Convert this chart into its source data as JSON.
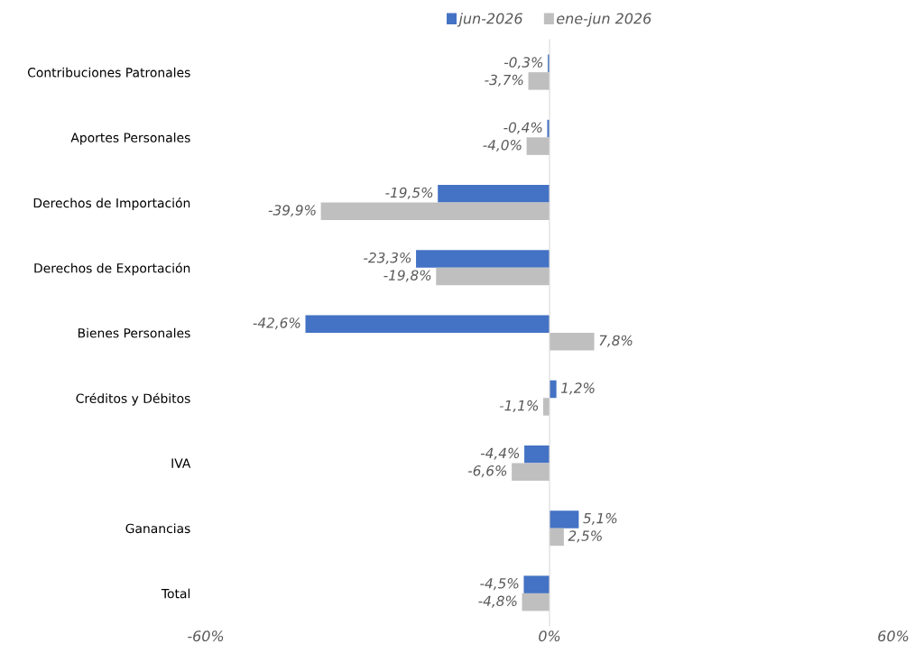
{
  "chart_data": {
    "type": "bar",
    "orientation": "horizontal",
    "categories": [
      "Contribuciones Patronales",
      "Aportes Personales",
      "Derechos de Importación",
      "Derechos de Exportación",
      "Bienes Personales",
      "Créditos y Débitos",
      "IVA",
      "Ganancias",
      "Total"
    ],
    "series": [
      {
        "name": "jun-2026",
        "color": "#4472c4",
        "values": [
          -0.3,
          -0.4,
          -19.5,
          -23.3,
          -42.6,
          1.2,
          -4.4,
          5.1,
          -4.5
        ],
        "value_labels": [
          "-0,3%",
          "-0,4%",
          "-19,5%",
          "-23,3%",
          "-42,6%",
          "1,2%",
          "-4,4%",
          "5,1%",
          "-4,5%"
        ]
      },
      {
        "name": "ene-jun 2026",
        "color": "#bfbfbf",
        "values": [
          -3.7,
          -4.0,
          -39.9,
          -19.8,
          7.8,
          -1.1,
          -6.6,
          2.5,
          -4.8
        ],
        "value_labels": [
          "-3,7%",
          "-4,0%",
          "-39,9%",
          "-19,8%",
          "7,8%",
          "-1,1%",
          "-6,6%",
          "2,5%",
          "-4,8%"
        ]
      }
    ],
    "xlim": [
      -60,
      60
    ],
    "xticks": [
      {
        "value": -60,
        "label": "-60%"
      },
      {
        "value": 0,
        "label": "0%"
      },
      {
        "value": 60,
        "label": "60%"
      }
    ],
    "legend": "top"
  }
}
